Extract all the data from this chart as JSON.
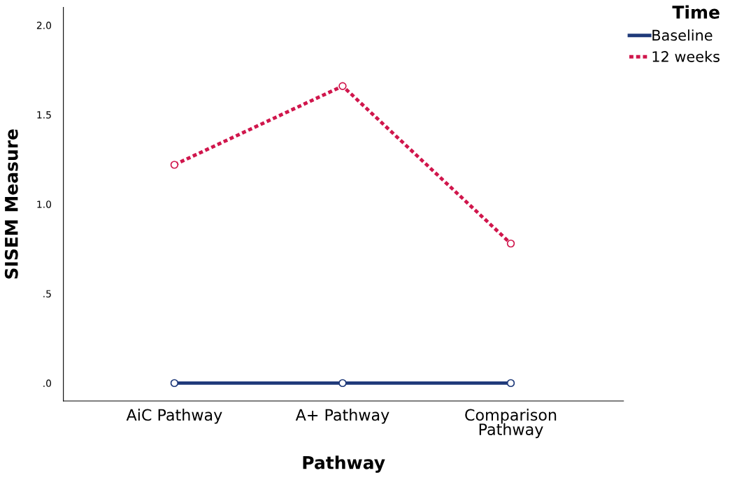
{
  "chart_data": {
    "type": "line",
    "xlabel": "Pathway",
    "ylabel": "SISEM Measure",
    "legend_title": "Time",
    "categories": [
      "AiC Pathway",
      "A+ Pathway",
      "Comparison\nPathway"
    ],
    "series": [
      {
        "name": "Baseline",
        "color": "#1f3a7a",
        "values": [
          0,
          0,
          0
        ],
        "line_style": "solid"
      },
      {
        "name": "12 weeks",
        "color": "#d0164c",
        "values": [
          1.22,
          1.66,
          0.78
        ],
        "line_style": "dotted"
      }
    ],
    "ylim": [
      -0.1,
      2.1
    ],
    "yticks": [
      {
        "value": 0,
        "label": ".0"
      },
      {
        "value": 0.5,
        "label": ".5"
      },
      {
        "value": 1,
        "label": "1.0"
      },
      1.5,
      {
        "value": 2,
        "label": "2.0"
      }
    ],
    "marker": "circle",
    "grid": false,
    "legend": "top right"
  }
}
